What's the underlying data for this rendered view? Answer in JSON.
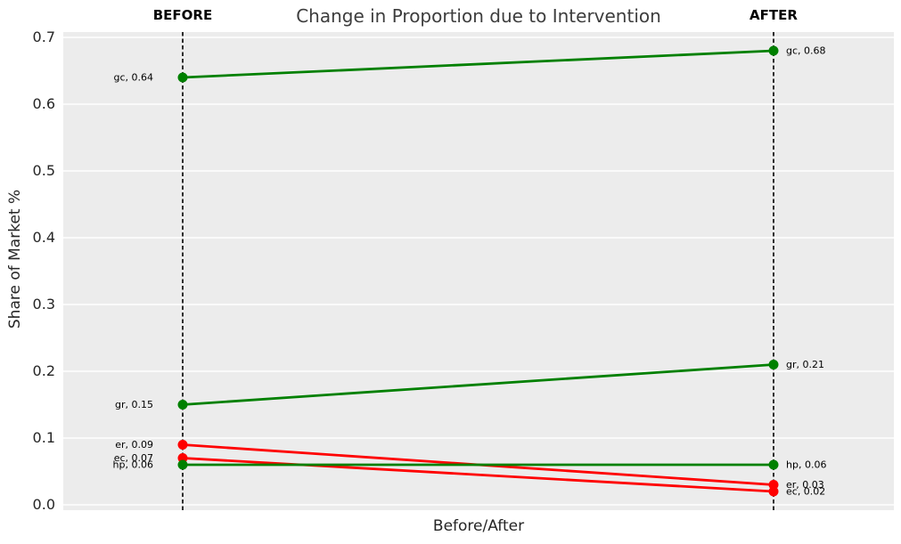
{
  "title": "Change in Proportion due to Intervention",
  "column_labels": {
    "before": "BEFORE",
    "after": "AFTER"
  },
  "chart_data": {
    "type": "line",
    "subtype": "slopegraph",
    "title": "Change in Proportion due to Intervention",
    "xlabel": "Before/After",
    "ylabel": "Share of Market %",
    "categories": [
      "BEFORE",
      "AFTER"
    ],
    "ylim": [
      0.0,
      0.7
    ],
    "ytick_labels": [
      "0.0",
      "0.1",
      "0.2",
      "0.3",
      "0.4",
      "0.5",
      "0.6",
      "0.7"
    ],
    "grid": true,
    "legend": false,
    "series": [
      {
        "name": "gc",
        "values": [
          0.64,
          0.68
        ],
        "color": "#008000",
        "point_labels": [
          "gc, 0.64",
          "gc, 0.68"
        ]
      },
      {
        "name": "gr",
        "values": [
          0.15,
          0.21
        ],
        "color": "#008000",
        "point_labels": [
          "gr, 0.15",
          "gr, 0.21"
        ]
      },
      {
        "name": "er",
        "values": [
          0.09,
          0.03
        ],
        "color": "#ff0000",
        "point_labels": [
          "er, 0.09",
          "er, 0.03"
        ]
      },
      {
        "name": "ec",
        "values": [
          0.07,
          0.02
        ],
        "color": "#ff0000",
        "point_labels": [
          "ec, 0.07",
          "ec, 0.02"
        ]
      },
      {
        "name": "hp",
        "values": [
          0.06,
          0.06
        ],
        "color": "#008000",
        "point_labels": [
          "hp, 0.06",
          "hp, 0.06"
        ]
      }
    ],
    "colors": {
      "plot_background": "#ececec",
      "gridline": "#ffffff",
      "column_guide": "#000000",
      "increase": "#008000",
      "decrease": "#ff0000",
      "title_text": "#3d3d3d",
      "axis_text": "#262626",
      "point_label_text": "#000000"
    }
  }
}
